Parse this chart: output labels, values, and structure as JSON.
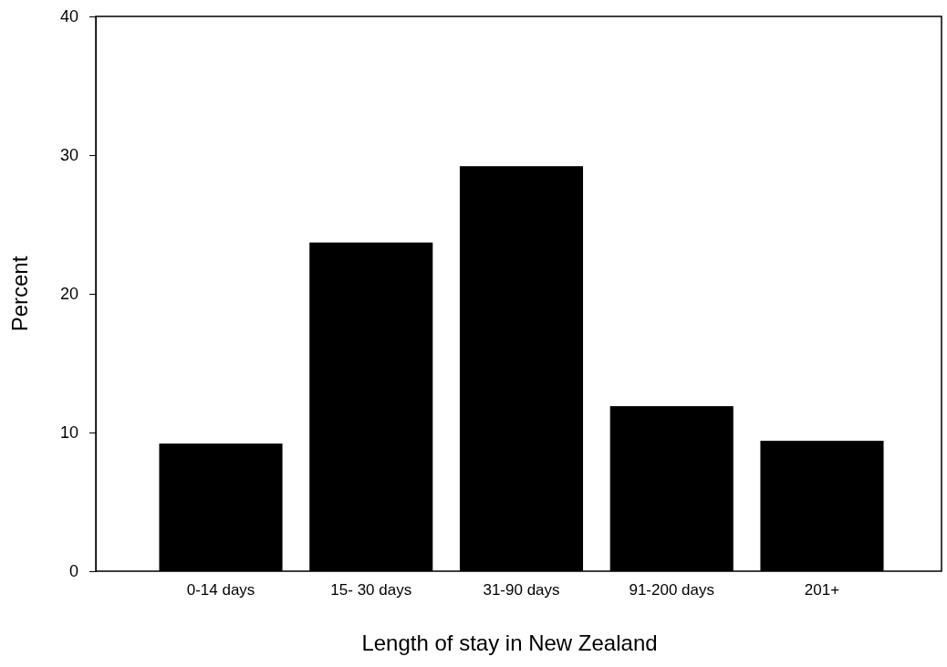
{
  "chart_data": {
    "type": "bar",
    "xlabel": "Length of stay in New Zealand",
    "ylabel": "Percent",
    "categories": [
      "0-14 days",
      "15- 30 days",
      "31-90 days",
      "91-200 days",
      "201+"
    ],
    "values": [
      9.2,
      23.7,
      29.2,
      11.9,
      9.4
    ],
    "color": "#000000",
    "ylim": [
      0,
      40
    ],
    "yticks": [
      0,
      10,
      20,
      30,
      40
    ],
    "grid": false
  }
}
